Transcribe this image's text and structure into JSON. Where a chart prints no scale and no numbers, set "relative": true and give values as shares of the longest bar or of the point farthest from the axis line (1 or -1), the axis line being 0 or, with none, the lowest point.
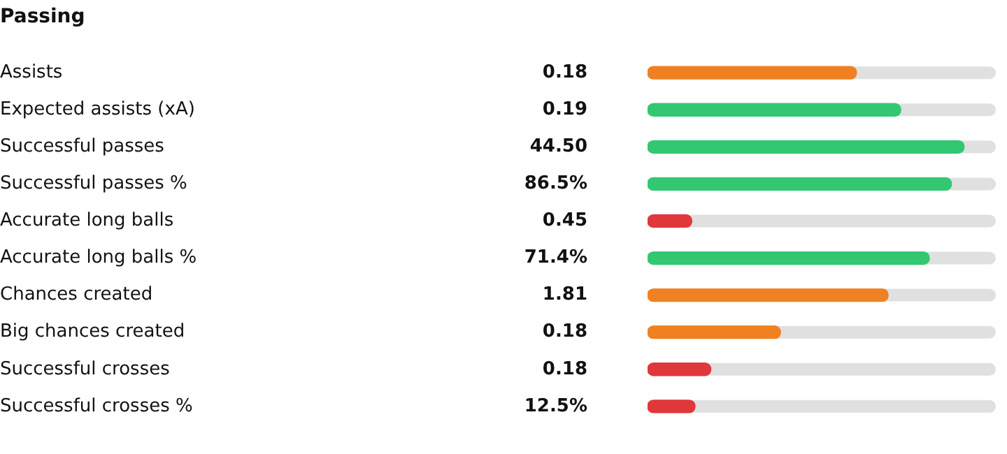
{
  "chart_data": {
    "type": "bar",
    "orientation": "horizontal",
    "relative": true,
    "title": "Passing",
    "categories": [
      "Assists",
      "Expected assists (xA)",
      "Successful passes",
      "Successful passes %",
      "Accurate long balls",
      "Accurate long balls %",
      "Chances created",
      "Big chances created",
      "Successful crosses",
      "Successful crosses %"
    ],
    "values": [
      0.66,
      0.8,
      1,
      0.96,
      0.14,
      0.89,
      0.76,
      0.42,
      0.2,
      0.15
    ],
    "colors": [
      "#f08122",
      "#33c772",
      "#33c772",
      "#33c772",
      "#e0373a",
      "#33c772",
      "#f08122",
      "#f08122",
      "#e0373a",
      "#e0373a"
    ],
    "annotations": [
      "0.18",
      "0.19",
      "44.50",
      "86.5%",
      "0.45",
      "71.4%",
      "1.81",
      "0.18",
      "0.18",
      "12.5%"
    ],
    "grid": false,
    "legend": false
  }
}
